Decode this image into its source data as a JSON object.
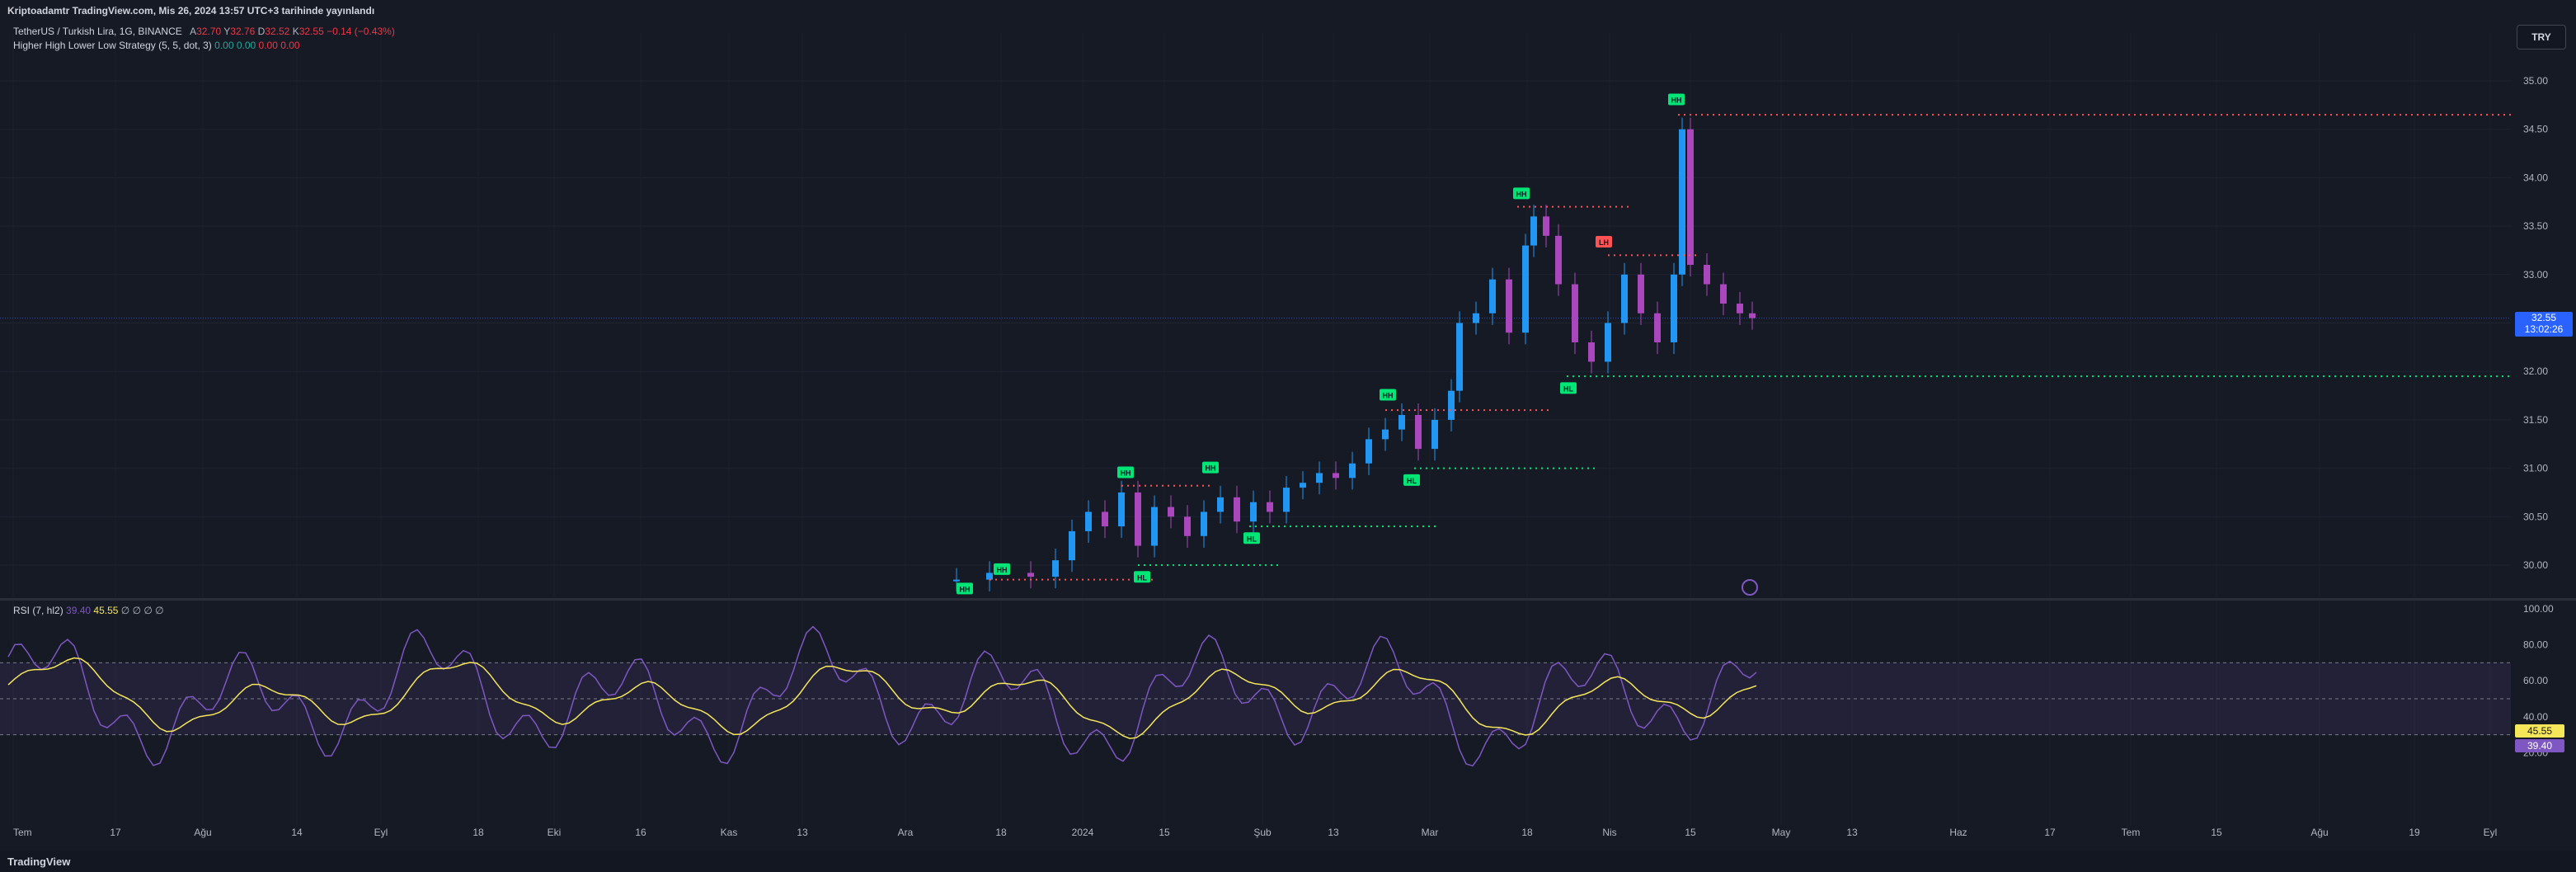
{
  "header": {
    "publish_line": "Kriptoadamtr TradingView.com, Mis 26, 2024 13:57 UTC+3 tarihinde yayınlandı"
  },
  "legend": {
    "symbol": "TetherUS / Turkish Lira, 1G, BINANCE",
    "open_label": "A",
    "open": "32.70",
    "high_label": "Y",
    "high": "32.76",
    "low_label": "D",
    "low": "32.52",
    "close_label": "K",
    "close": "32.55",
    "change": "−0.14 (−0.43%)",
    "strategy": "Higher High Lower Low Strategy (5, 5, dot, 3)",
    "strategy_values": [
      "0.00",
      "0.00",
      "0.00",
      "0.00"
    ]
  },
  "currency_button": "TRY",
  "price_axis": {
    "ticks": [
      "35.00",
      "34.50",
      "34.00",
      "33.50",
      "33.00",
      "32.50",
      "32.00",
      "31.50",
      "31.00",
      "30.50",
      "30.00"
    ],
    "current_price": "32.55",
    "countdown": "13:02:26"
  },
  "rsi": {
    "legend_name": "RSI (7, hl2)",
    "value": "39.40",
    "ma_value": "45.55",
    "extras": "∅ ∅ ∅ ∅",
    "ticks": [
      "100.00",
      "80.00",
      "60.00",
      "40.00",
      "20.00"
    ]
  },
  "time_axis": [
    "Tem",
    "17",
    "Ağu",
    "14",
    "Eyl",
    "18",
    "Eki",
    "16",
    "Kas",
    "13",
    "Ara",
    "18",
    "2024",
    "15",
    "Şub",
    "13",
    "Mar",
    "18",
    "Nis",
    "15",
    "May",
    "13",
    "Haz",
    "17",
    "Tem",
    "15",
    "Ağu",
    "19",
    "Eyl"
  ],
  "markers": [
    {
      "label": "HH",
      "type": "high"
    },
    {
      "label": "HH",
      "type": "high"
    },
    {
      "label": "HH",
      "type": "high"
    },
    {
      "label": "HH",
      "type": "high"
    },
    {
      "label": "HH",
      "type": "high"
    },
    {
      "label": "HH",
      "type": "high"
    },
    {
      "label": "HH",
      "type": "high"
    },
    {
      "label": "LH",
      "type": "lowerhigh"
    },
    {
      "label": "HL",
      "type": "low"
    },
    {
      "label": "HL",
      "type": "low"
    },
    {
      "label": "HL",
      "type": "low"
    },
    {
      "label": "HL",
      "type": "low"
    }
  ],
  "footer": {
    "brand": "TradingView"
  },
  "colors": {
    "up": "#26a69a",
    "down": "#f23645",
    "candle_up": "#2196f3",
    "candle_down": "#ab47bc",
    "rsi": "#7e57c2",
    "rsi_ma": "#f5e65a",
    "marker_green": "#00e676",
    "marker_red": "#ff5252"
  }
}
